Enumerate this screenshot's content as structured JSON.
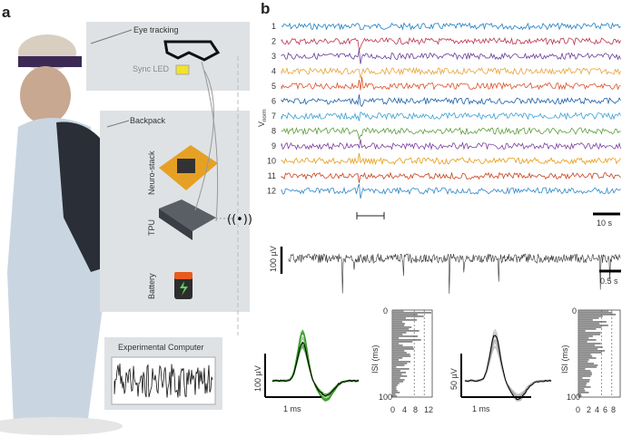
{
  "panel_a": {
    "letter": "a",
    "labels": {
      "eye_tracking": "Eye tracking",
      "sync_led": "Sync LED",
      "backpack": "Backpack",
      "neuro_stack": "Neuro-stack",
      "tpu": "TPU",
      "battery": "Battery",
      "experimental_computer": "Experimental Computer"
    }
  },
  "panel_b": {
    "letter": "b",
    "channel_labels": [
      "1",
      "2",
      "3",
      "4",
      "5",
      "6",
      "7",
      "8",
      "9",
      "10",
      "11",
      "12"
    ],
    "channel_colors": [
      "#1f7fc1",
      "#b8344d",
      "#6a3d9a",
      "#e8a33a",
      "#d9532b",
      "#1c5fa6",
      "#3aa0d6",
      "#5a9e3a",
      "#7b3f9e",
      "#e59b16",
      "#c8421f",
      "#2f86c6"
    ],
    "y_axis_label": "V",
    "y_axis_subscript": "norm",
    "scale_top": "10 s",
    "raw_scale_y": "100 µV",
    "raw_scale_x": "0.5 s",
    "wave1": {
      "ylabel": "100 µV",
      "xlabel": "1 ms",
      "color": "#3a9a2a"
    },
    "isi1": {
      "ylabel": "ISI (ms)",
      "y_ticks": [
        "0",
        "100"
      ],
      "x_ticks": [
        "0",
        "4",
        "8",
        "12"
      ]
    },
    "wave2": {
      "ylabel": "50 µV",
      "xlabel": "1 ms",
      "color": "#8a8a8a"
    },
    "isi2": {
      "ylabel": "ISI (ms)",
      "y_ticks": [
        "0",
        "100"
      ],
      "x_ticks": [
        "0",
        "2",
        "4",
        "6",
        "8"
      ]
    }
  }
}
